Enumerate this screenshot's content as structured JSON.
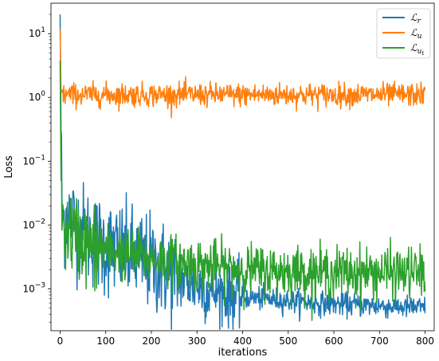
{
  "chart_data": {
    "type": "line",
    "xlabel": "iterations",
    "ylabel": "Loss",
    "yscale": "log",
    "xlim": [
      -20,
      820
    ],
    "ylim": [
      0.00022,
      30
    ],
    "xticks": [
      0,
      100,
      200,
      300,
      400,
      500,
      600,
      700,
      800
    ],
    "yticks": [
      {
        "value": 0.001,
        "base": "10",
        "exp": "−3"
      },
      {
        "value": 0.01,
        "base": "10",
        "exp": "−2"
      },
      {
        "value": 0.1,
        "base": "10",
        "exp": "−1"
      },
      {
        "value": 1,
        "base": "10",
        "exp": "0"
      },
      {
        "value": 10,
        "base": "10",
        "exp": "1"
      }
    ],
    "grid": false,
    "legend_position": "top-right",
    "series": [
      {
        "name": "ℒr",
        "legend_base": "ℒ",
        "legend_sub": "r",
        "color": "#1f77b4",
        "x": [
          0,
          2,
          4,
          8,
          15,
          25,
          40,
          60,
          80,
          100,
          125,
          150,
          175,
          200,
          225,
          250,
          275,
          300,
          325,
          350,
          375,
          400,
          450,
          500,
          550,
          600,
          650,
          700,
          750,
          800
        ],
        "y": [
          20,
          0.3,
          0.02,
          0.012,
          0.015,
          0.012,
          0.009,
          0.007,
          0.0055,
          0.0045,
          0.004,
          0.0035,
          0.003,
          0.0025,
          0.002,
          0.0016,
          0.0013,
          0.0011,
          0.00095,
          0.00085,
          0.0008,
          0.00075,
          0.0007,
          0.00065,
          0.0006,
          0.00058,
          0.00056,
          0.00054,
          0.00052,
          0.0005
        ]
      },
      {
        "name": "ℒu",
        "legend_base": "ℒ",
        "legend_sub": "u",
        "color": "#ff7f0e",
        "x": [
          0,
          2,
          5,
          10,
          100,
          200,
          300,
          400,
          500,
          600,
          700,
          800
        ],
        "y": [
          12,
          1.3,
          1.15,
          1.1,
          1.1,
          1.1,
          1.1,
          1.1,
          1.1,
          1.1,
          1.1,
          1.1
        ]
      },
      {
        "name": "ℒut",
        "legend_base": "ℒ",
        "legend_sub": "u",
        "legend_subsub": "t",
        "color": "#2ca02c",
        "x": [
          0,
          2,
          4,
          8,
          15,
          25,
          40,
          60,
          80,
          100,
          150,
          200,
          250,
          300,
          350,
          400,
          450,
          500,
          550,
          600,
          650,
          700,
          750,
          800
        ],
        "y": [
          3.8,
          0.05,
          0.012,
          0.009,
          0.008,
          0.007,
          0.006,
          0.005,
          0.0045,
          0.004,
          0.0035,
          0.003,
          0.0027,
          0.0024,
          0.0022,
          0.002,
          0.0019,
          0.0019,
          0.0018,
          0.0018,
          0.0018,
          0.0018,
          0.0018,
          0.0018
        ]
      }
    ]
  }
}
